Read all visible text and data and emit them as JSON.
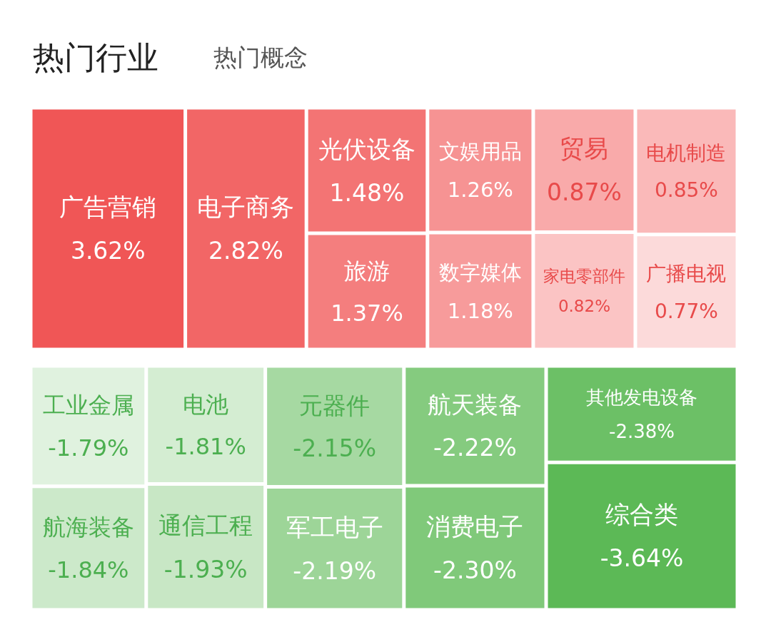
{
  "chart_data": {
    "type": "other",
    "title": "热门行业",
    "subtitle": "热门概念",
    "categories": [
      "广告营销",
      "电子商务",
      "光伏设备",
      "旅游",
      "文娱用品",
      "数字媒体",
      "贸易",
      "家电零部件",
      "电机制造",
      "广播电视",
      "工业金属",
      "航海装备",
      "电池",
      "通信工程",
      "元器件",
      "军工电子",
      "航天装备",
      "消费电子",
      "其他发电设备",
      "综合类"
    ],
    "values": [
      3.62,
      2.82,
      1.48,
      1.37,
      1.26,
      1.18,
      0.87,
      0.82,
      0.85,
      0.77,
      -1.79,
      -1.84,
      -1.81,
      -1.93,
      -2.15,
      -2.19,
      -2.22,
      -2.3,
      -2.38,
      -3.64
    ],
    "value_labels": [
      "3.62%",
      "2.82%",
      "1.48%",
      "1.37%",
      "1.26%",
      "1.18%",
      "0.87%",
      "0.82%",
      "0.85%",
      "0.77%",
      "-1.79%",
      "-1.84%",
      "-1.81%",
      "-1.93%",
      "-2.15%",
      "-2.19%",
      "-2.22%",
      "-2.30%",
      "-2.38%",
      "-3.64%"
    ],
    "colors": [
      "#f05656",
      "#f26666",
      "#f37474",
      "#f47e7e",
      "#f69393",
      "#f79b9b",
      "#f9aaaa",
      "#fbc4c4",
      "#fab9b9",
      "#fcdada",
      "#e0f2df",
      "#cce9ca",
      "#d4edd2",
      "#c8e7c5",
      "#a6d9a2",
      "#9dd598",
      "#85cb7f",
      "#80c97a",
      "#6cc066",
      "#5cb956"
    ]
  }
}
